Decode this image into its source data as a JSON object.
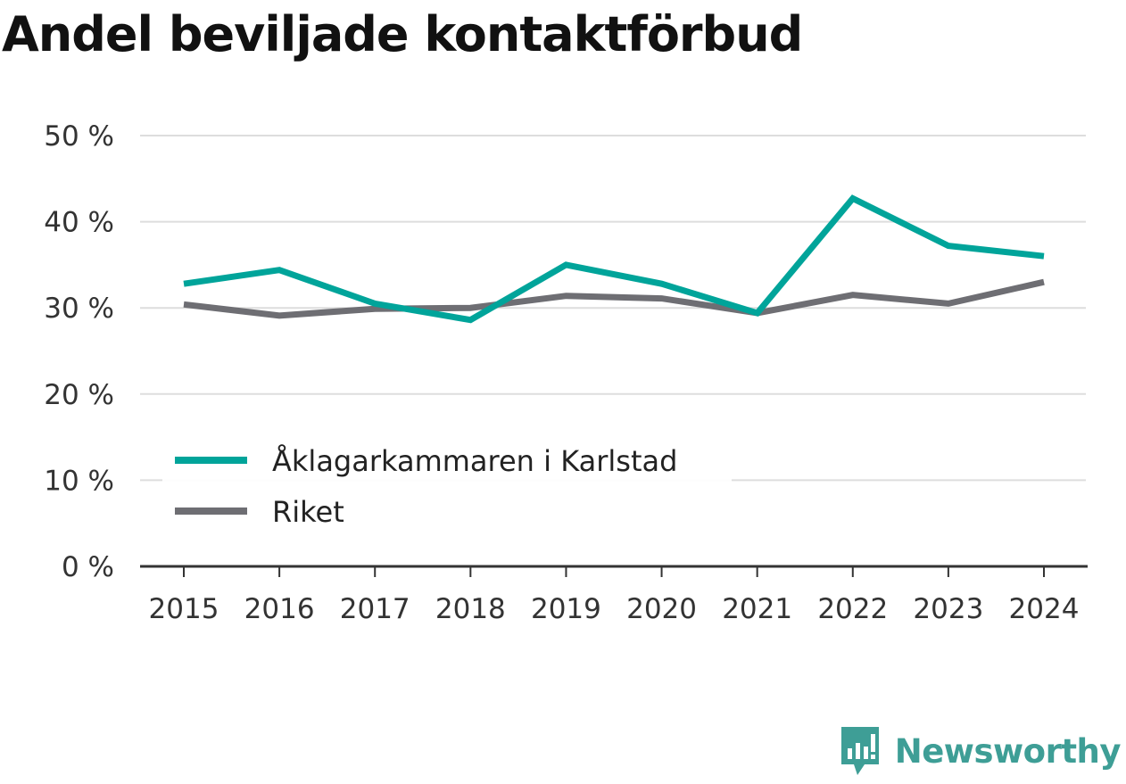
{
  "title": "Andel beviljade kontaktförbud",
  "brand": {
    "name": "Newsworthy",
    "icon": "newsworthy-logo-icon",
    "color": "#3e9e96"
  },
  "chart_data": {
    "type": "line",
    "categories": [
      "2015",
      "2016",
      "2017",
      "2018",
      "2019",
      "2020",
      "2021",
      "2022",
      "2023",
      "2024"
    ],
    "series": [
      {
        "name": "Åklagarkammaren i Karlstad",
        "color": "#00a49a",
        "values": [
          32.8,
          34.4,
          30.5,
          28.6,
          35.0,
          32.8,
          29.4,
          42.7,
          37.2,
          36.0
        ]
      },
      {
        "name": "Riket",
        "color": "#6e6e73",
        "values": [
          30.4,
          29.1,
          29.9,
          30.0,
          31.4,
          31.1,
          29.4,
          31.5,
          30.5,
          33.0
        ]
      }
    ],
    "ylim": [
      0,
      50
    ],
    "yticks": [
      0,
      10,
      20,
      30,
      40,
      50
    ],
    "ytick_labels": [
      "0 %",
      "10 %",
      "20 %",
      "30 %",
      "40 %",
      "50 %"
    ],
    "grid": true,
    "legend_position": "lower-left"
  }
}
